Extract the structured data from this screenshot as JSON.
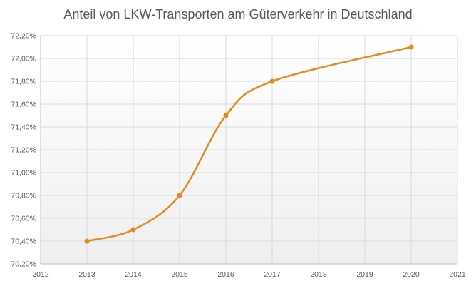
{
  "chart_data": {
    "type": "line",
    "title": "Anteil von LKW-Transporten am Güterverkehr in Deutschland",
    "xlabel": "",
    "ylabel": "",
    "xlim": [
      2012,
      2021
    ],
    "ylim": [
      70.2,
      72.2
    ],
    "x_ticks": [
      "2012",
      "2013",
      "2014",
      "2015",
      "2016",
      "2017",
      "2018",
      "2019",
      "2020",
      "2021"
    ],
    "y_ticks": [
      "70,20%",
      "70,40%",
      "70,60%",
      "70,80%",
      "71,00%",
      "71,20%",
      "71,40%",
      "71,60%",
      "71,80%",
      "72,00%",
      "72,20%"
    ],
    "grid": true,
    "legend": "none",
    "series": [
      {
        "x": [
          2013,
          2014,
          2015,
          2016,
          2017,
          2020
        ],
        "y": [
          70.4,
          70.5,
          70.8,
          71.5,
          71.8,
          72.1
        ],
        "color": "#E8891E",
        "smooth": true
      }
    ]
  }
}
